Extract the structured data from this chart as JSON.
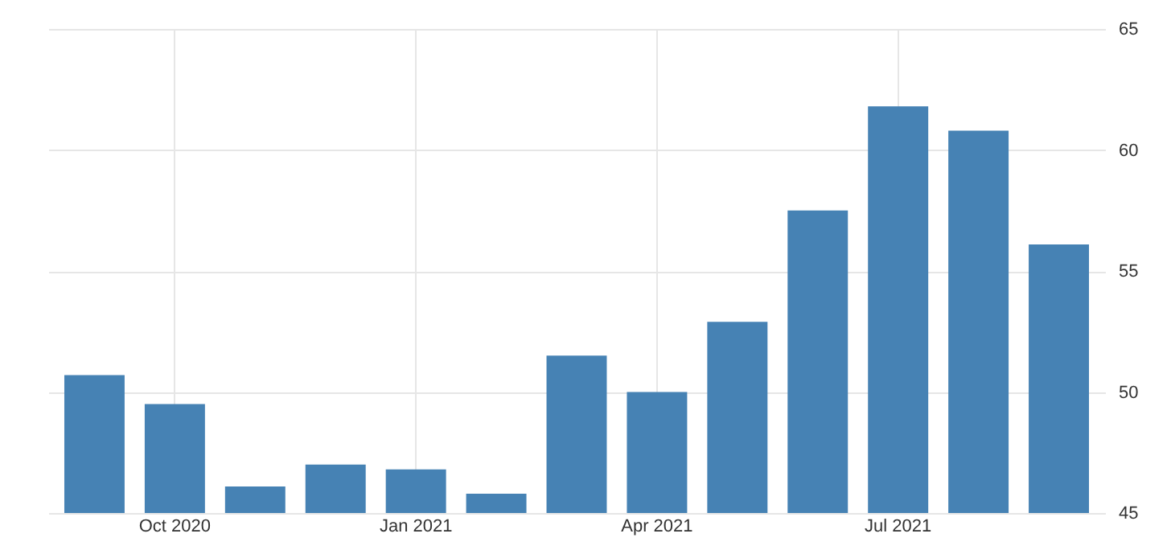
{
  "chart_data": {
    "type": "bar",
    "categories": [
      null,
      "Oct 2020",
      null,
      null,
      "Jan 2021",
      null,
      null,
      "Apr 2021",
      null,
      null,
      "Jul 2021",
      null,
      null
    ],
    "values": [
      50.7,
      49.5,
      46.1,
      47.0,
      46.8,
      45.8,
      51.5,
      50.0,
      52.9,
      57.5,
      61.8,
      60.8,
      56.1
    ],
    "color": "#4682b4",
    "ylim": [
      45,
      65
    ],
    "yticks": [
      45,
      50,
      55,
      60,
      65
    ],
    "grid": true
  }
}
